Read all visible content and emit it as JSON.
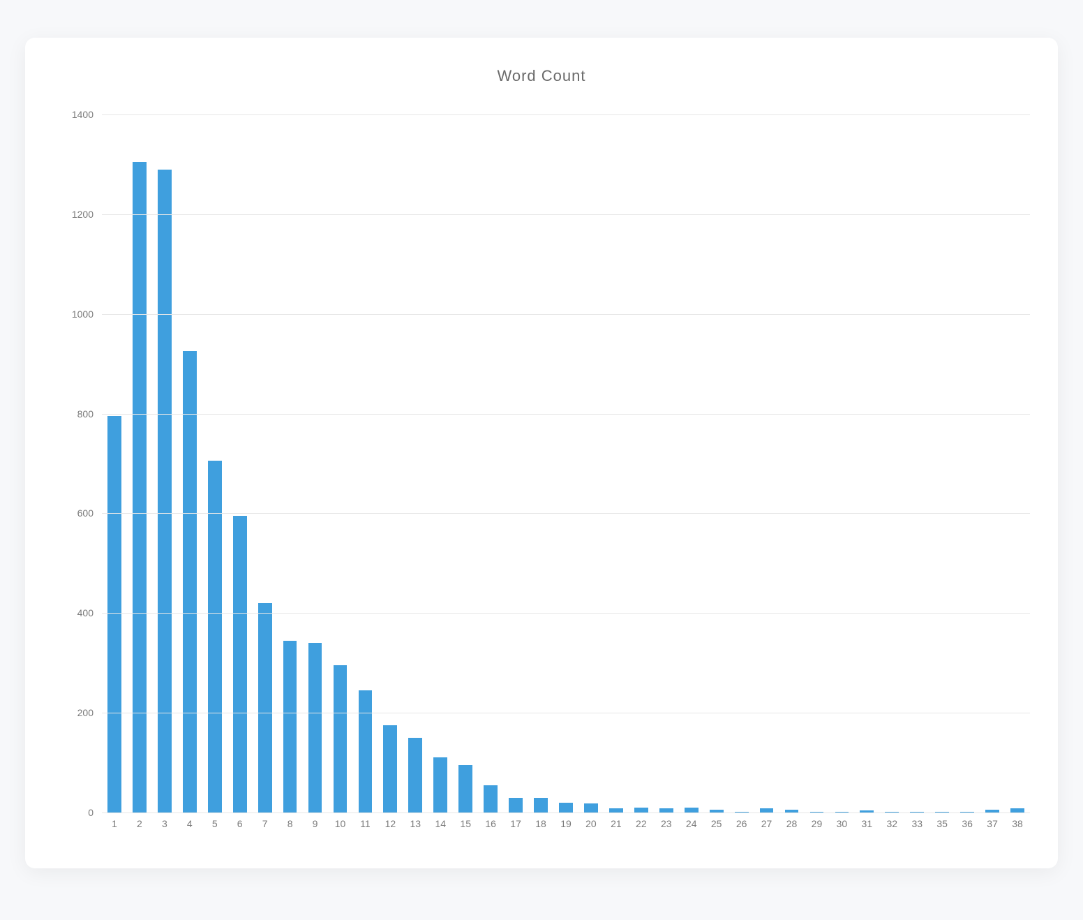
{
  "chart": {
    "type": "bar",
    "title": "Word  Count",
    "title_color": "#6a6a6a",
    "title_fontsize": 22,
    "background_color": "#ffffff",
    "card_background": "#ffffff",
    "page_background": "#f7f8fa",
    "bar_color": "#3f9fde",
    "bar_width_ratio": 0.55,
    "grid_color": "#e7e7e7",
    "axis_label_color": "#7a7a7a",
    "axis_label_fontsize": 14,
    "y": {
      "min": 0,
      "max": 1400,
      "ticks": [
        0,
        200,
        400,
        600,
        800,
        1000,
        1200,
        1400
      ]
    },
    "categories": [
      "1",
      "2",
      "3",
      "4",
      "5",
      "6",
      "7",
      "8",
      "9",
      "10",
      "11",
      "12",
      "13",
      "14",
      "15",
      "16",
      "17",
      "18",
      "19",
      "20",
      "21",
      "22",
      "23",
      "24",
      "25",
      "26",
      "27",
      "28",
      "29",
      "30",
      "31",
      "32",
      "33",
      "35",
      "36",
      "37",
      "38"
    ],
    "values": [
      795,
      1305,
      1290,
      925,
      705,
      595,
      420,
      345,
      340,
      295,
      245,
      175,
      150,
      110,
      95,
      55,
      30,
      30,
      20,
      18,
      8,
      10,
      8,
      10,
      6,
      2,
      8,
      6,
      1,
      1,
      4,
      1,
      1,
      1,
      1,
      6,
      8
    ]
  }
}
